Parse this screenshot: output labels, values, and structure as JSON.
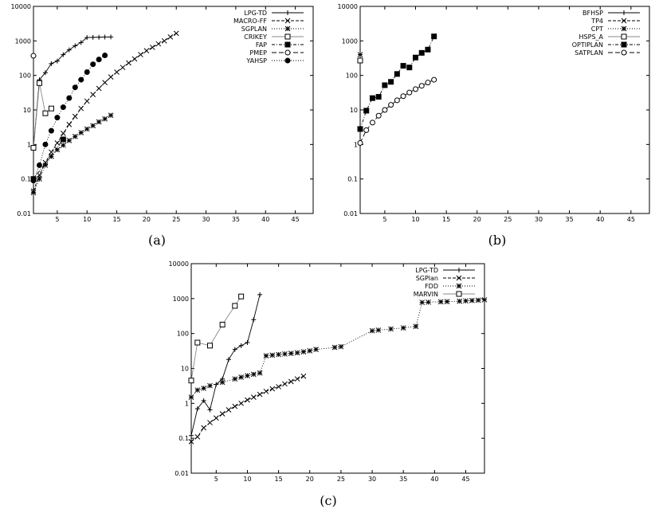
{
  "chart_data": [
    {
      "type": "line",
      "caption": "(a)",
      "yscale": "log",
      "xlim": [
        1,
        48
      ],
      "ylim": [
        0.01,
        10000
      ],
      "x_ticks": [
        5,
        10,
        15,
        20,
        25,
        30,
        35,
        40,
        45
      ],
      "y_ticks": [
        0.01,
        0.1,
        1,
        10,
        100,
        1000,
        10000
      ],
      "y_tick_labels": [
        "0.01",
        "0.1",
        "1",
        "10",
        "100",
        "1000",
        "10000"
      ],
      "legend_position": "top-right",
      "series": [
        {
          "name": "LPG-TD",
          "marker": "plus",
          "dash": "solid",
          "x": [
            1,
            2,
            3,
            4,
            5,
            6,
            7,
            8,
            9,
            10,
            11,
            12,
            13,
            14
          ],
          "y": [
            0.8,
            75,
            120,
            220,
            260,
            400,
            550,
            720,
            900,
            1250,
            1270,
            1280,
            1290,
            1300
          ]
        },
        {
          "name": "MACRO-FF",
          "marker": "x",
          "dash": "4,2",
          "x": [
            1,
            2,
            3,
            4,
            5,
            6,
            7,
            8,
            9,
            10,
            11,
            12,
            13,
            14,
            15,
            16,
            17,
            18,
            19,
            20,
            21,
            22,
            23,
            24,
            25
          ],
          "y": [
            0.045,
            0.13,
            0.3,
            0.6,
            1.1,
            2.1,
            3.8,
            6.5,
            11,
            18,
            28,
            42,
            62,
            90,
            125,
            170,
            230,
            300,
            400,
            520,
            650,
            820,
            1000,
            1300,
            1650
          ]
        },
        {
          "name": "SGPLAN",
          "marker": "asterisk",
          "dash": "1,2",
          "x": [
            1,
            2,
            3,
            4,
            5,
            6,
            7,
            8,
            9,
            10,
            11,
            12,
            13,
            14
          ],
          "y": [
            0.04,
            0.1,
            0.25,
            0.45,
            0.7,
            0.95,
            1.3,
            1.7,
            2.2,
            2.8,
            3.5,
            4.5,
            5.5,
            7
          ]
        },
        {
          "name": "CRIKEY",
          "marker": "square-open",
          "dash": "solid-gray",
          "x": [
            1,
            2,
            3,
            4
          ],
          "y": [
            0.8,
            60,
            8,
            11
          ]
        },
        {
          "name": "FAP",
          "marker": "square-filled",
          "dash": "4,2,1,2",
          "x": [
            1,
            6
          ],
          "y": [
            0.1,
            1.4
          ]
        },
        {
          "name": "PMEP",
          "marker": "circle-open",
          "dash": "6,3",
          "x": [
            1
          ],
          "y": [
            370
          ]
        },
        {
          "name": "YAHSP",
          "marker": "circle-filled",
          "dash": "1,2",
          "x": [
            1,
            2,
            3,
            4,
            5,
            6,
            7,
            8,
            9,
            10,
            11,
            12,
            13
          ],
          "y": [
            0.09,
            0.25,
            1,
            2.5,
            6,
            12,
            22,
            45,
            75,
            125,
            210,
            290,
            380
          ]
        }
      ]
    },
    {
      "type": "line",
      "caption": "(b)",
      "yscale": "log",
      "xlim": [
        1,
        48
      ],
      "ylim": [
        0.01,
        10000
      ],
      "x_ticks": [
        5,
        10,
        15,
        20,
        25,
        30,
        35,
        40,
        45
      ],
      "y_ticks": [
        0.01,
        0.1,
        1,
        10,
        100,
        1000,
        10000
      ],
      "y_tick_labels": [
        "0.01",
        "0.1",
        "1",
        "10",
        "100",
        "1000",
        "10000"
      ],
      "legend_position": "top-right",
      "series": [
        {
          "name": "BFHSP",
          "marker": "plus",
          "dash": "solid",
          "x": [],
          "y": []
        },
        {
          "name": "TP4",
          "marker": "x",
          "dash": "4,2",
          "x": [],
          "y": []
        },
        {
          "name": "CPT",
          "marker": "asterisk",
          "dash": "1,2",
          "x": [
            1
          ],
          "y": [
            400
          ]
        },
        {
          "name": "HSPS_A",
          "marker": "square-open",
          "dash": "solid-gray",
          "x": [
            1
          ],
          "y": [
            270
          ]
        },
        {
          "name": "OPTIPLAN",
          "marker": "square-filled",
          "dash": "4,2,1,2",
          "x": [
            1,
            2,
            3,
            4,
            5,
            6,
            7,
            8,
            9,
            10,
            11,
            12,
            13
          ],
          "y": [
            2.8,
            9.5,
            22,
            24,
            52,
            65,
            110,
            190,
            170,
            330,
            450,
            560,
            1350
          ]
        },
        {
          "name": "SATPLAN",
          "marker": "circle-open",
          "dash": "6,3",
          "x": [
            1,
            2,
            3,
            4,
            5,
            6,
            7,
            8,
            9,
            10,
            11,
            12,
            13
          ],
          "y": [
            1.1,
            2.6,
            4.3,
            6.8,
            10,
            14,
            19,
            25,
            32,
            40,
            50,
            62,
            75
          ]
        }
      ]
    },
    {
      "type": "line",
      "caption": "(c)",
      "yscale": "log",
      "xlim": [
        1,
        48
      ],
      "ylim": [
        0.01,
        10000
      ],
      "x_ticks": [
        5,
        10,
        15,
        20,
        25,
        30,
        35,
        40,
        45
      ],
      "y_ticks": [
        0.01,
        0.1,
        1,
        10,
        100,
        1000,
        10000
      ],
      "y_tick_labels": [
        "0.01",
        "0.1",
        "1",
        "10",
        "100",
        "1000",
        "10000"
      ],
      "legend_position": "top-right",
      "series": [
        {
          "name": "LPG-TD",
          "marker": "plus",
          "dash": "solid",
          "x": [
            1,
            2,
            3,
            4,
            5,
            6,
            7,
            8,
            9,
            10,
            11,
            12
          ],
          "y": [
            0.12,
            0.7,
            1.2,
            0.65,
            3.5,
            5,
            18,
            35,
            45,
            55,
            250,
            1300
          ]
        },
        {
          "name": "SGPlan",
          "marker": "x",
          "dash": "4,2",
          "x": [
            1,
            2,
            3,
            4,
            5,
            6,
            7,
            8,
            9,
            10,
            11,
            12,
            13,
            14,
            15,
            16,
            17,
            18,
            19
          ],
          "y": [
            0.08,
            0.11,
            0.2,
            0.28,
            0.38,
            0.5,
            0.65,
            0.82,
            1.0,
            1.25,
            1.5,
            1.8,
            2.2,
            2.6,
            3.0,
            3.6,
            4.2,
            5.0,
            6.0
          ]
        },
        {
          "name": "FDD",
          "marker": "asterisk",
          "dash": "1,2",
          "x": [
            1,
            2,
            3,
            4,
            6,
            8,
            9,
            10,
            11,
            12,
            13,
            14,
            15,
            16,
            17,
            18,
            19,
            20,
            21,
            24,
            25,
            30,
            31,
            33,
            35,
            37,
            38,
            39,
            41,
            42,
            44,
            45,
            46,
            47,
            48
          ],
          "y": [
            1.5,
            2.4,
            2.7,
            3.2,
            4.0,
            5.0,
            5.6,
            6.2,
            6.8,
            7.4,
            23,
            24,
            25,
            26,
            27,
            28,
            30,
            32,
            35,
            40,
            42,
            120,
            125,
            135,
            145,
            160,
            780,
            790,
            810,
            820,
            840,
            860,
            880,
            900,
            920
          ]
        },
        {
          "name": "MARVIN",
          "marker": "square-open",
          "dash": "solid-gray",
          "x": [
            1,
            2,
            4,
            6,
            8,
            9
          ],
          "y": [
            4.5,
            55,
            45,
            180,
            620,
            1150
          ]
        }
      ]
    }
  ]
}
